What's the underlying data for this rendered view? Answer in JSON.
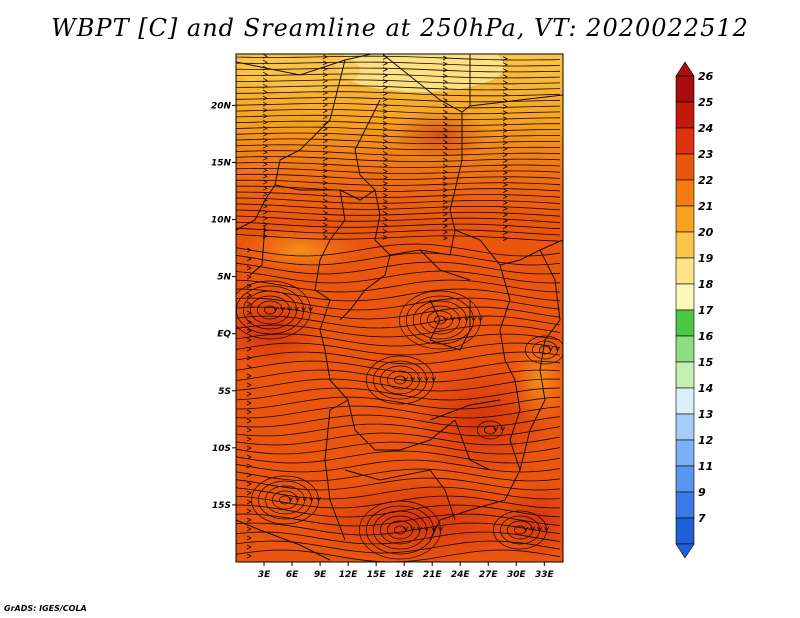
{
  "title": "WBPT [C] and Sreamline at 250hPa, VT: 2020022512",
  "credit": "GrADS: IGES/COLA",
  "map": {
    "lat_labels": [
      "20N",
      "15N",
      "10N",
      "5N",
      "EQ",
      "5S",
      "10S",
      "15S"
    ],
    "lat_values": [
      20,
      15,
      10,
      5,
      0,
      -5,
      -10,
      -15
    ],
    "lon_labels": [
      "3E",
      "6E",
      "9E",
      "12E",
      "15E",
      "18E",
      "21E",
      "24E",
      "27E",
      "30E",
      "33E"
    ],
    "lon_values": [
      3,
      6,
      9,
      12,
      15,
      18,
      21,
      24,
      27,
      30,
      33
    ],
    "lat_range": [
      -20,
      24.5
    ],
    "lon_range": [
      0,
      35
    ]
  },
  "colorbar": {
    "labels": [
      "7",
      "9",
      "11",
      "12",
      "13",
      "14",
      "15",
      "16",
      "17",
      "18",
      "19",
      "20",
      "21",
      "22",
      "23",
      "24",
      "25",
      "26"
    ],
    "colors": [
      "#1f60d6",
      "#3a7be8",
      "#5a95f0",
      "#7fb0f5",
      "#a6cdf9",
      "#d9f0fb",
      "#c6efb4",
      "#8fdd80",
      "#4cc744",
      "#fff8b8",
      "#fde48a",
      "#fbc64a",
      "#f7a21f",
      "#f27d14",
      "#eb560f",
      "#dc3210",
      "#c41a0d",
      "#a80c0c"
    ]
  }
}
